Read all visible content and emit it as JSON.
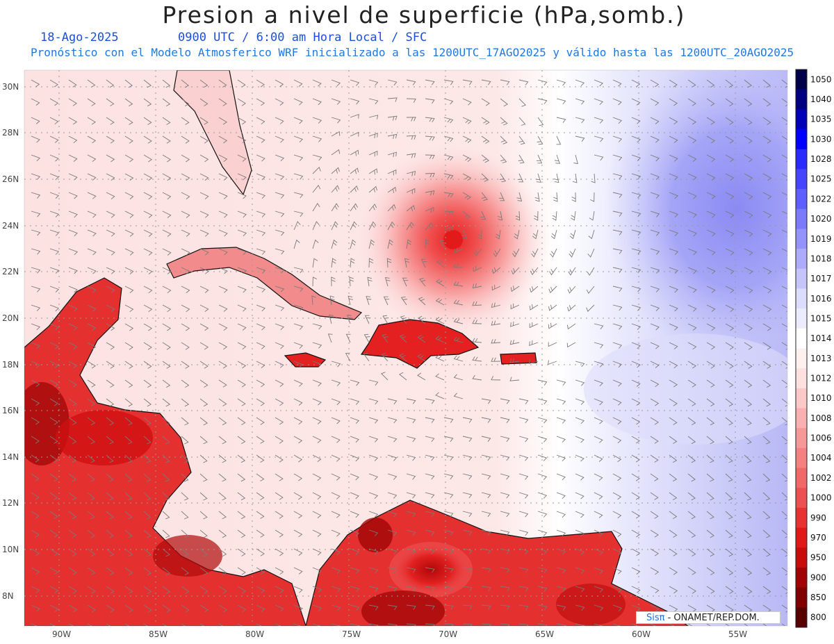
{
  "header": {
    "title": "Presion a nivel de superficie (hPa,somb.)",
    "date": "18-Ago-2025",
    "time": "0900 UTC / 6:00 am Hora Local / SFC",
    "description": "Pronóstico con el Modelo Atmosferico WRF inicializado a las 1200UTC_17AGO2025 y válido hasta las  1200UTC_20AGO2025"
  },
  "map": {
    "lat_labels": [
      "30N",
      "28N",
      "26N",
      "24N",
      "22N",
      "20N",
      "18N",
      "16N",
      "14N",
      "12N",
      "10N",
      "8N"
    ],
    "lon_labels": [
      "90W",
      "85W",
      "80W",
      "75W",
      "70W",
      "65W",
      "60W",
      "55W"
    ],
    "storm_center": {
      "lon": -69.5,
      "lat": 23.3
    },
    "colors": {
      "low_deep": "#5a0000",
      "low": "#e01818",
      "mid_low": "#fbd8d8",
      "neutral": "#ffffff",
      "high": "#8c8cf5",
      "coast": "#111111",
      "wind_barbs": "#888888"
    }
  },
  "colorbar": {
    "levels": [
      "1050",
      "1040",
      "1035",
      "1030",
      "1028",
      "1025",
      "1022",
      "1020",
      "1019",
      "1018",
      "1017",
      "1016",
      "1015",
      "1014",
      "1013",
      "1012",
      "1010",
      "1008",
      "1006",
      "1004",
      "1002",
      "1000",
      "990",
      "970",
      "950",
      "900",
      "850",
      "800"
    ],
    "colors": [
      "#00004a",
      "#000080",
      "#0000b8",
      "#0000ff",
      "#2a2aff",
      "#4545ff",
      "#5f5fff",
      "#7a7afb",
      "#9393fb",
      "#acacfb",
      "#c5c5fb",
      "#dcdcfc",
      "#ececfd",
      "#ffffff",
      "#fff0f0",
      "#fde0e0",
      "#fcc8c8",
      "#fab0b0",
      "#f79898",
      "#f48080",
      "#f06868",
      "#ec5050",
      "#e83232",
      "#e01818",
      "#c80c0c",
      "#a00404",
      "#800000",
      "#580000"
    ]
  },
  "credit": {
    "brand": "Sisπ",
    "text": " - ONAMET/REP.DOM."
  }
}
